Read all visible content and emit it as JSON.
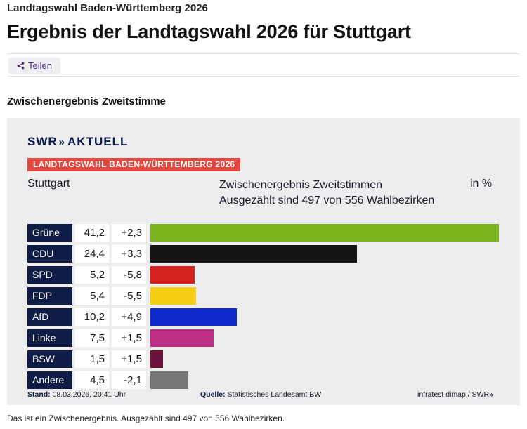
{
  "page": {
    "kicker": "Landtagswahl Baden-Württemberg 2026",
    "headline": "Ergebnis der Landtagswahl 2026 für Stuttgart",
    "share_label": "Teilen",
    "section_title": "Zwischenergebnis Zweitstimme",
    "caption": "Das ist ein Zwischenergebnis. Ausgezählt sind 497 von 556 Wahlbezirken."
  },
  "graphic": {
    "brand": "SWR",
    "brand_suffix": "AKTUELL",
    "ribbon": "LANDTAGSWAHL BADEN-WÜRTTEMBERG 2026",
    "region": "Stuttgart",
    "subhead_line1": "Zwischenergebnis Zweitstimmen",
    "subhead_line2": "Ausgezählt sind 497 von 556 Wahlbezirken",
    "unit": "in %",
    "stand_label": "Stand:",
    "stand_value": "08.03.2026, 20:41 Uhr",
    "source_label": "Quelle:",
    "source_value": "Statistisches Landesamt BW",
    "credit": "infratest dimap / SWR",
    "credit_chevrons": "»"
  },
  "chart_data": {
    "type": "bar",
    "orientation": "horizontal",
    "title": "Zwischenergebnis Zweitstimmen",
    "subtitle": "Ausgezählt sind 497 von 556 Wahlbezirken",
    "unit": "in %",
    "xlim": [
      0,
      41.2
    ],
    "categories": [
      "Grüne",
      "CDU",
      "SPD",
      "FDP",
      "AfD",
      "Linke",
      "BSW",
      "Andere"
    ],
    "values": [
      41.2,
      24.4,
      5.2,
      5.4,
      10.2,
      7.5,
      1.5,
      4.5
    ],
    "value_labels": [
      "41,2",
      "24,4",
      "5,2",
      "5,4",
      "10,2",
      "7,5",
      "1,5",
      "4,5"
    ],
    "changes": [
      "+2,3",
      "+3,3",
      "-5,8",
      "-5,5",
      "+4,9",
      "+1,5",
      "+1,5",
      "-2,1"
    ],
    "colors": [
      "#7ab51d",
      "#141414",
      "#d7211e",
      "#f6cc14",
      "#0d29c9",
      "#bc2e86",
      "#6c1437",
      "#767676"
    ]
  }
}
